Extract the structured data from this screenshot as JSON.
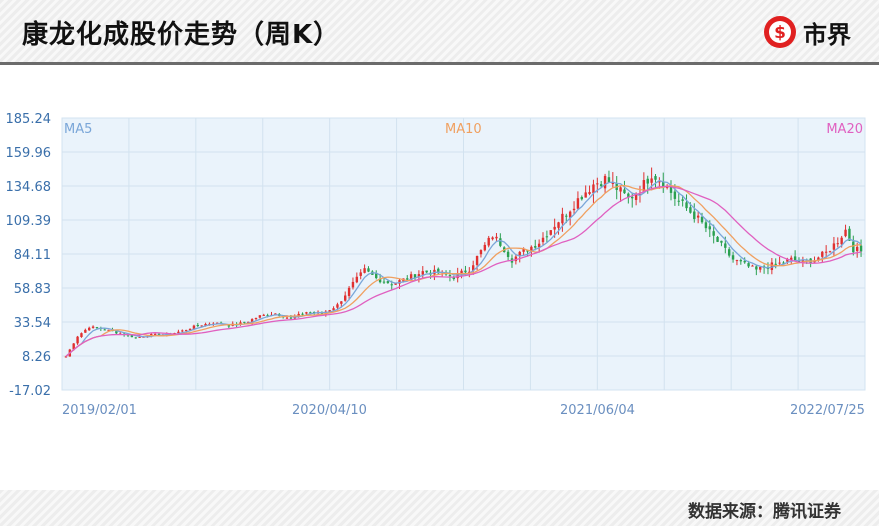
{
  "header": {
    "title": "康龙化成股价走势（周K）"
  },
  "brand": {
    "name": "市界"
  },
  "footer": {
    "source": "数据来源：腾讯证券"
  },
  "chart_data": {
    "type": "candlestick",
    "title": "康龙化成股价走势（周K）",
    "y_ticks": [
      "185.24",
      "159.96",
      "134.68",
      "109.39",
      "84.11",
      "58.83",
      "33.54",
      "8.26",
      "-17.02"
    ],
    "ylim": [
      -17.02,
      185.24
    ],
    "x_ticks": [
      "2019/02/01",
      "2020/04/10",
      "2021/06/04",
      "2022/07/25"
    ],
    "legend": [
      {
        "name": "MA5",
        "color": "#7aa6d8",
        "position": "top-left"
      },
      {
        "name": "MA10",
        "color": "#f0a060",
        "position": "top-center"
      },
      {
        "name": "MA20",
        "color": "#e060c0",
        "position": "top-right"
      }
    ],
    "grid": true,
    "up_color": "#e03030",
    "down_color": "#2aa050",
    "close_anchors": [
      [
        0,
        8
      ],
      [
        3,
        23
      ],
      [
        6,
        30
      ],
      [
        10,
        28
      ],
      [
        14,
        25
      ],
      [
        18,
        22
      ],
      [
        22,
        24
      ],
      [
        26,
        24
      ],
      [
        30,
        27
      ],
      [
        34,
        31
      ],
      [
        38,
        33
      ],
      [
        42,
        31
      ],
      [
        46,
        33
      ],
      [
        50,
        38
      ],
      [
        54,
        40
      ],
      [
        58,
        36
      ],
      [
        62,
        41
      ],
      [
        66,
        40
      ],
      [
        70,
        46
      ],
      [
        74,
        62
      ],
      [
        77,
        72
      ],
      [
        80,
        66
      ],
      [
        84,
        62
      ],
      [
        88,
        66
      ],
      [
        92,
        71
      ],
      [
        96,
        70
      ],
      [
        100,
        67
      ],
      [
        104,
        73
      ],
      [
        107,
        86
      ],
      [
        110,
        98
      ],
      [
        112,
        92
      ],
      [
        115,
        80
      ],
      [
        118,
        86
      ],
      [
        122,
        93
      ],
      [
        126,
        106
      ],
      [
        130,
        118
      ],
      [
        133,
        128
      ],
      [
        136,
        136
      ],
      [
        139,
        140
      ],
      [
        142,
        133
      ],
      [
        145,
        125
      ],
      [
        148,
        132
      ],
      [
        151,
        144
      ],
      [
        154,
        138
      ],
      [
        157,
        126
      ],
      [
        160,
        118
      ],
      [
        163,
        110
      ],
      [
        166,
        100
      ],
      [
        169,
        90
      ],
      [
        172,
        80
      ],
      [
        175,
        76
      ],
      [
        178,
        72
      ],
      [
        181,
        75
      ],
      [
        184,
        77
      ],
      [
        187,
        80
      ],
      [
        190,
        78
      ],
      [
        193,
        80
      ],
      [
        196,
        85
      ],
      [
        199,
        94
      ],
      [
        201,
        102
      ],
      [
        203,
        88
      ],
      [
        205,
        86
      ]
    ]
  }
}
